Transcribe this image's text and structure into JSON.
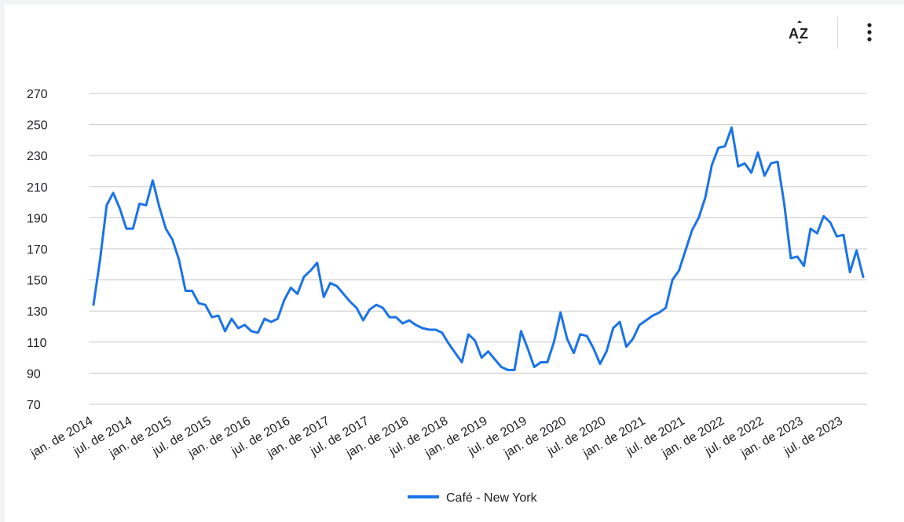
{
  "toolbar": {
    "sort_icon": "sort-az-icon",
    "menu_icon": "more-vert-icon"
  },
  "colors": {
    "series": "#1a73e8",
    "grid": "#c8c8c8",
    "text": "#202124"
  },
  "chart_data": {
    "type": "line",
    "title": "",
    "xlabel": "",
    "ylabel": "",
    "ylim": [
      70,
      270
    ],
    "yticks": [
      70,
      90,
      110,
      130,
      150,
      170,
      190,
      210,
      230,
      250,
      270
    ],
    "grid": true,
    "legend_position": "bottom",
    "x_tick_labels": [
      "jan. de 2014",
      "jul. de 2014",
      "jan. de 2015",
      "jul. de 2015",
      "jan. de 2016",
      "jul. de 2016",
      "jan. de 2017",
      "jul. de 2017",
      "jan. de 2018",
      "jul. de 2018",
      "jan. de 2019",
      "jul. de 2019",
      "jan. de 2020",
      "jul. de 2020",
      "jan. de 2021",
      "jul. de 2021",
      "jan. de 2022",
      "jul. de 2022",
      "jan. de 2023",
      "jul. de 2023"
    ],
    "x_start": "2014-01",
    "series": [
      {
        "name": "Café - New York",
        "values": [
          134,
          163,
          198,
          206,
          196,
          183,
          183,
          199,
          198,
          214,
          197,
          183,
          176,
          163,
          143,
          143,
          135,
          134,
          126,
          127,
          117,
          125,
          119,
          121,
          117,
          116,
          125,
          123,
          125,
          137,
          145,
          141,
          152,
          156,
          161,
          139,
          148,
          146,
          141,
          136,
          132,
          124,
          131,
          134,
          132,
          126,
          126,
          122,
          124,
          121,
          119,
          118,
          118,
          116,
          109,
          103,
          97,
          115,
          111,
          100,
          104,
          99,
          94,
          92,
          92,
          117,
          106,
          94,
          97,
          97,
          110,
          129,
          112,
          103,
          115,
          114,
          106,
          96,
          104,
          119,
          123,
          107,
          112,
          121,
          124,
          127,
          129,
          132,
          150,
          156,
          169,
          182,
          190,
          203,
          224,
          235,
          236,
          248,
          223,
          225,
          219,
          232,
          217,
          225,
          226,
          199,
          164,
          165,
          159,
          183,
          180,
          191,
          187,
          178,
          179,
          155,
          169,
          152
        ]
      }
    ]
  }
}
